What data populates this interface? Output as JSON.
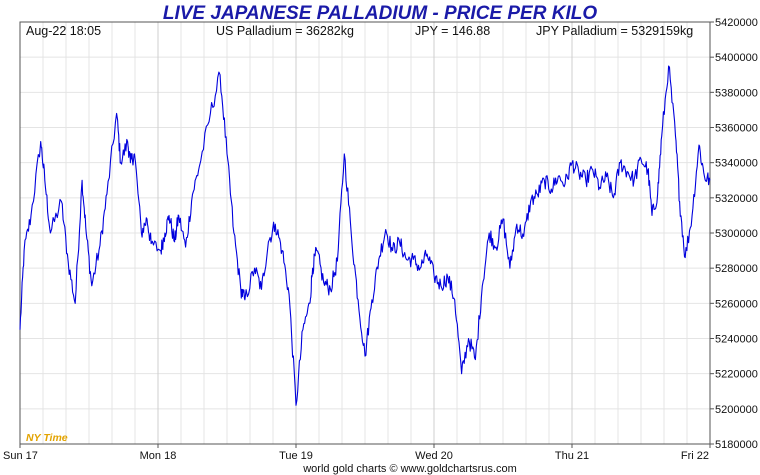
{
  "header": {
    "timestamp": "Aug-22  18:05",
    "us_price": "US Palladium = 36282kg",
    "fx_rate": "JPY = 146.88",
    "local_price": "JPY Palladium = 5329159kg"
  },
  "timezone_label": "NY Time",
  "footer": "world gold charts © www.goldchartsrus.com",
  "colors": {
    "line": "#0000dd",
    "title": "#1a1aa8",
    "grid": "#e4e4e4",
    "timezone": "#e3a300"
  },
  "chart_data": {
    "type": "line",
    "title": "LIVE JAPANESE PALLADIUM - PRICE PER KILO",
    "xlabel": "",
    "ylabel": "",
    "categories": [
      "Sun 17",
      "Mon 18",
      "Tue 19",
      "Wed 20",
      "Thu 21",
      "Fri 22"
    ],
    "xlim": [
      0,
      5
    ],
    "ylim": [
      5180000,
      5420000
    ],
    "yticks": [
      5180000,
      5200000,
      5220000,
      5240000,
      5260000,
      5280000,
      5300000,
      5320000,
      5340000,
      5360000,
      5380000,
      5400000,
      5420000
    ],
    "grid": true,
    "y_axis_side": "right",
    "series": [
      {
        "x": [
          0,
          0.03,
          0.08,
          0.15,
          0.18,
          0.22,
          0.3,
          0.35,
          0.4,
          0.45,
          0.48,
          0.52,
          0.58,
          0.63,
          0.7,
          0.73,
          0.78,
          0.8,
          0.83,
          0.88,
          0.92,
          0.95,
          1.02,
          1.05,
          1.08,
          1.12,
          1.15,
          1.2,
          1.25,
          1.3,
          1.38,
          1.45,
          1.5,
          1.55,
          1.6,
          1.63,
          1.7,
          1.75,
          1.8,
          1.85,
          1.9,
          1.95,
          2.0,
          2.05,
          2.1,
          2.12,
          2.15,
          2.2,
          2.25,
          2.3,
          2.35,
          2.4,
          2.45,
          2.5,
          2.55,
          2.6,
          2.65,
          2.7,
          2.75,
          2.8,
          2.85,
          2.9,
          2.95,
          3.0,
          3.05,
          3.1,
          3.15,
          3.2,
          3.25,
          3.3,
          3.35,
          3.4,
          3.45,
          3.5,
          3.55,
          3.6,
          3.65,
          3.7,
          3.75,
          3.8,
          3.85,
          3.9,
          3.95,
          4.0,
          4.05,
          4.1,
          4.15,
          4.2,
          4.25,
          4.3,
          4.35,
          4.4,
          4.45,
          4.5,
          4.55,
          4.58,
          4.62,
          4.65,
          4.7,
          4.75,
          4.78,
          4.82,
          4.87,
          4.92,
          4.96,
          5.0
        ],
        "values": [
          5245000,
          5290000,
          5310000,
          5352000,
          5330000,
          5300000,
          5318000,
          5283000,
          5260000,
          5330000,
          5300000,
          5270000,
          5293000,
          5322000,
          5368000,
          5340000,
          5352000,
          5340000,
          5345000,
          5300000,
          5308000,
          5294000,
          5290000,
          5300000,
          5310000,
          5295000,
          5310000,
          5292000,
          5322000,
          5338000,
          5368000,
          5390000,
          5345000,
          5300000,
          5268000,
          5262000,
          5280000,
          5268000,
          5295000,
          5305000,
          5290000,
          5265000,
          5202000,
          5245000,
          5260000,
          5280000,
          5290000,
          5272000,
          5268000,
          5284000,
          5345000,
          5300000,
          5262000,
          5230000,
          5262000,
          5285000,
          5302000,
          5290000,
          5295000,
          5285000,
          5285000,
          5280000,
          5288000,
          5276000,
          5270000,
          5275000,
          5262000,
          5220000,
          5240000,
          5228000,
          5270000,
          5300000,
          5292000,
          5308000,
          5280000,
          5305000,
          5298000,
          5318000,
          5322000,
          5330000,
          5325000,
          5332000,
          5328000,
          5340000,
          5334000,
          5330000,
          5336000,
          5326000,
          5332000,
          5320000,
          5340000,
          5335000,
          5330000,
          5342000,
          5336000,
          5310000,
          5322000,
          5355000,
          5395000,
          5355000,
          5318000,
          5286000,
          5310000,
          5350000,
          5332000,
          5330000
        ]
      }
    ]
  }
}
